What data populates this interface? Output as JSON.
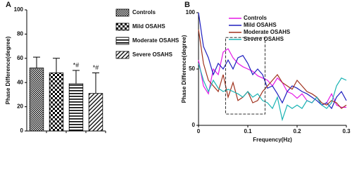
{
  "chart_data": [
    {
      "type": "bar",
      "panel_label": "A",
      "ylabel": "Phase Difference(degree)",
      "categories": [
        "Controls",
        "Mild OSAHS",
        "Moderate OSAHS",
        "Severe OSAHS"
      ],
      "values": [
        52,
        48,
        39,
        31
      ],
      "errors": [
        9,
        12,
        11,
        17
      ],
      "significance": [
        null,
        null,
        "*#",
        "*#"
      ],
      "ylim": [
        0,
        100
      ],
      "yticks": [
        0,
        20,
        40,
        60,
        80,
        100
      ],
      "color": "#000000"
    },
    {
      "type": "line",
      "panel_label": "B",
      "xlabel": "Frequency(Hz)",
      "ylabel": "Phase Difference(degree)",
      "x": [
        0,
        0.01,
        0.02,
        0.03,
        0.04,
        0.05,
        0.06,
        0.07,
        0.08,
        0.09,
        0.1,
        0.11,
        0.12,
        0.13,
        0.14,
        0.15,
        0.16,
        0.17,
        0.18,
        0.19,
        0.2,
        0.21,
        0.22,
        0.23,
        0.24,
        0.25,
        0.26,
        0.27,
        0.28,
        0.29,
        0.3
      ],
      "series": [
        {
          "name": "Controls",
          "color": "#e619e6",
          "values": [
            58,
            35,
            28,
            50,
            45,
            65,
            68,
            60,
            55,
            52,
            50,
            48,
            44,
            42,
            40,
            35,
            42,
            38,
            30,
            28,
            24,
            28,
            22,
            20,
            25,
            18,
            20,
            28,
            18,
            16,
            16
          ]
        },
        {
          "name": "Mild OSAHS",
          "color": "#1f1fbf",
          "values": [
            100,
            70,
            60,
            45,
            55,
            50,
            58,
            50,
            60,
            62,
            55,
            45,
            50,
            45,
            33,
            35,
            28,
            20,
            30,
            35,
            33,
            30,
            28,
            25,
            22,
            18,
            20,
            15,
            25,
            30,
            22
          ]
        },
        {
          "name": "Moderate OSAHS",
          "color": "#a0321e",
          "values": [
            85,
            55,
            40,
            35,
            30,
            45,
            25,
            38,
            22,
            25,
            30,
            20,
            22,
            30,
            35,
            40,
            45,
            38,
            35,
            32,
            40,
            35,
            30,
            28,
            25,
            20,
            18,
            22,
            20,
            15,
            18
          ]
        },
        {
          "name": "Severe OSAHS",
          "color": "#19b3b3",
          "values": [
            55,
            40,
            30,
            40,
            33,
            30,
            32,
            30,
            28,
            25,
            30,
            25,
            28,
            22,
            20,
            15,
            25,
            5,
            18,
            15,
            18,
            15,
            22,
            20,
            25,
            18,
            15,
            20,
            35,
            42,
            40
          ]
        }
      ],
      "highlight_box": {
        "xlim": [
          0.055,
          0.135
        ],
        "ylim": [
          10,
          78
        ]
      },
      "xlim": [
        0,
        0.3
      ],
      "xticks": [
        0,
        0.1,
        0.2,
        0.3
      ],
      "ylim": [
        0,
        100
      ],
      "yticks": [
        0,
        50,
        100
      ]
    }
  ]
}
